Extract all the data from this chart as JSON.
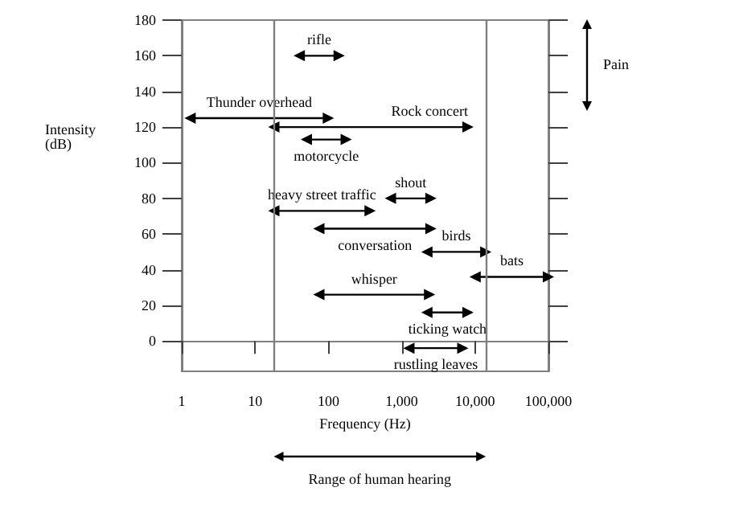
{
  "chart_data": {
    "type": "line",
    "xlabel": "Frequency (Hz)",
    "ylabel": "Intensity (dB)",
    "log": "x",
    "marker": "triangle",
    "xlim": [
      1,
      100000
    ],
    "xticks": [
      1,
      10,
      100,
      {
        "value": 1000,
        "label": "1,000"
      },
      {
        "value": 10000,
        "label": "10,000"
      },
      {
        "value": 100000,
        "label": "100,000"
      }
    ],
    "ylim": [
      -17,
      180
    ],
    "yticks": [
      0,
      20,
      40,
      60,
      80,
      100,
      120,
      140,
      160,
      180
    ],
    "series": [
      {
        "name": "rifle",
        "color": "#000000",
        "x": [
          40,
          140
        ],
        "values": [
          160,
          160
        ]
      },
      {
        "name": "Thunder overhead",
        "color": "#000000",
        "x": [
          1.3,
          100
        ],
        "values": [
          125,
          125
        ]
      },
      {
        "name": "Rock concert",
        "color": "#000000",
        "x": [
          18,
          8000
        ],
        "values": [
          120,
          120
        ]
      },
      {
        "name": "motorcycle",
        "color": "#000000",
        "x": [
          50,
          175
        ],
        "values": [
          113,
          113
        ]
      },
      {
        "name": "shout",
        "color": "#000000",
        "x": [
          700,
          2500
        ],
        "values": [
          80,
          80
        ]
      },
      {
        "name": "heavy street traffic",
        "color": "#000000",
        "x": [
          18,
          370
        ],
        "values": [
          73,
          73
        ]
      },
      {
        "name": "conversation",
        "color": "#000000",
        "x": [
          74,
          2500
        ],
        "values": [
          63,
          63
        ]
      },
      {
        "name": "birds",
        "color": "#000000",
        "x": [
          2200,
          14000
        ],
        "values": [
          50,
          50
        ]
      },
      {
        "name": "bats",
        "color": "#000000",
        "x": [
          10000,
          100000
        ],
        "values": [
          36,
          36
        ]
      },
      {
        "name": "whisper",
        "color": "#000000",
        "x": [
          74,
          2400
        ],
        "values": [
          26,
          26
        ]
      },
      {
        "name": "ticking watch",
        "color": "#000000",
        "x": [
          2200,
          8000
        ],
        "values": [
          16,
          16
        ]
      },
      {
        "name": "rustling leaves",
        "color": "#000000",
        "x": [
          1250,
          6800
        ],
        "values": [
          -4,
          -4
        ]
      }
    ],
    "ref_lines": [
      {
        "axis": "x",
        "value": 18,
        "color": "#808080"
      },
      {
        "axis": "x",
        "value": 14000,
        "color": "#808080"
      }
    ],
    "annotations": [
      "Range of human hearing",
      "Pain"
    ]
  }
}
